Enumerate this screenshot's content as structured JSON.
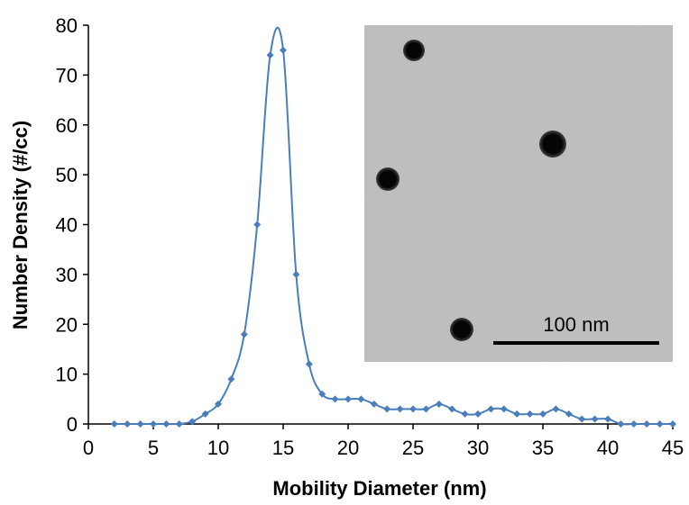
{
  "chart_data": {
    "type": "line",
    "x_label": "Mobility Diameter (nm)",
    "y_label": "Number Density (#/cc)",
    "x": [
      2,
      3,
      4,
      5,
      6,
      7,
      8,
      9,
      10,
      11,
      12,
      13,
      14,
      15,
      16,
      17,
      18,
      19,
      20,
      21,
      22,
      23,
      24,
      25,
      26,
      27,
      28,
      29,
      30,
      31,
      32,
      33,
      34,
      35,
      36,
      37,
      38,
      39,
      40,
      41,
      42,
      43,
      44,
      45
    ],
    "series": [
      {
        "color": "#4a7ebb",
        "values": [
          0,
          0,
          0,
          0,
          0,
          0,
          0.5,
          2,
          4,
          9,
          18,
          40,
          74,
          75,
          30,
          12,
          6,
          5,
          5,
          5,
          4,
          3,
          3,
          3,
          3,
          4,
          3,
          2,
          2,
          3,
          3,
          2,
          2,
          2,
          3,
          2,
          1,
          1,
          1,
          0,
          0,
          0,
          0,
          0
        ]
      }
    ],
    "xlim": [
      0,
      45
    ],
    "xticks": [
      0,
      5,
      10,
      15,
      20,
      25,
      30,
      35,
      40,
      45
    ],
    "ylim": [
      0,
      80
    ],
    "yticks": [
      0,
      10,
      20,
      30,
      40,
      50,
      60,
      70,
      80
    ],
    "grid": false,
    "smooth": true,
    "annotations": [
      "100 nm"
    ]
  }
}
